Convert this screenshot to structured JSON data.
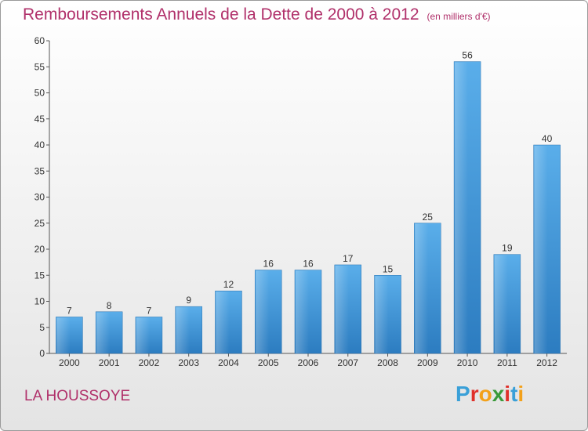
{
  "title": "Remboursements Annuels de la Dette de 2000 à 2012",
  "subtitle": "(en milliers d'€)",
  "location": "LA HOUSSOYE",
  "logo": "Proxiti",
  "colors": {
    "bar": "#4a9fe0",
    "title": "#b0306a"
  },
  "chart_data": {
    "type": "bar",
    "title": "Remboursements Annuels de la Dette de 2000 à 2012",
    "subtitle": "(en milliers d'€)",
    "categories": [
      "2000",
      "2001",
      "2002",
      "2003",
      "2004",
      "2005",
      "2006",
      "2007",
      "2008",
      "2009",
      "2010",
      "2011",
      "2012"
    ],
    "values": [
      7,
      8,
      7,
      9,
      12,
      16,
      16,
      17,
      15,
      25,
      56,
      19,
      40
    ],
    "ylim": [
      0,
      60
    ],
    "yticks": [
      0,
      5,
      10,
      15,
      20,
      25,
      30,
      35,
      40,
      45,
      50,
      55,
      60
    ],
    "grid": false,
    "legend": "none"
  }
}
